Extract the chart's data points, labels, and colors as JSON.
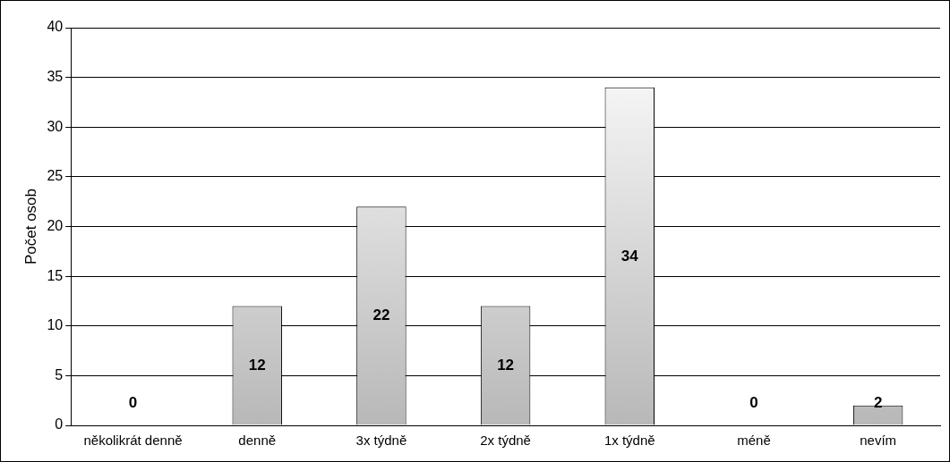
{
  "chart_data": {
    "type": "bar",
    "ylabel": "Počet osob",
    "categories": [
      "několikrát denně",
      "denně",
      "3x týdně",
      "2x týdně",
      "1x týdně",
      "méně",
      "nevím"
    ],
    "values": [
      0,
      12,
      22,
      12,
      34,
      0,
      2
    ],
    "color": "#b8b8b8",
    "ylim": [
      0,
      40
    ],
    "yticks": [
      0,
      5,
      10,
      15,
      20,
      25,
      30,
      35,
      40
    ],
    "grid": "y",
    "data_labels": true,
    "legend": false
  }
}
